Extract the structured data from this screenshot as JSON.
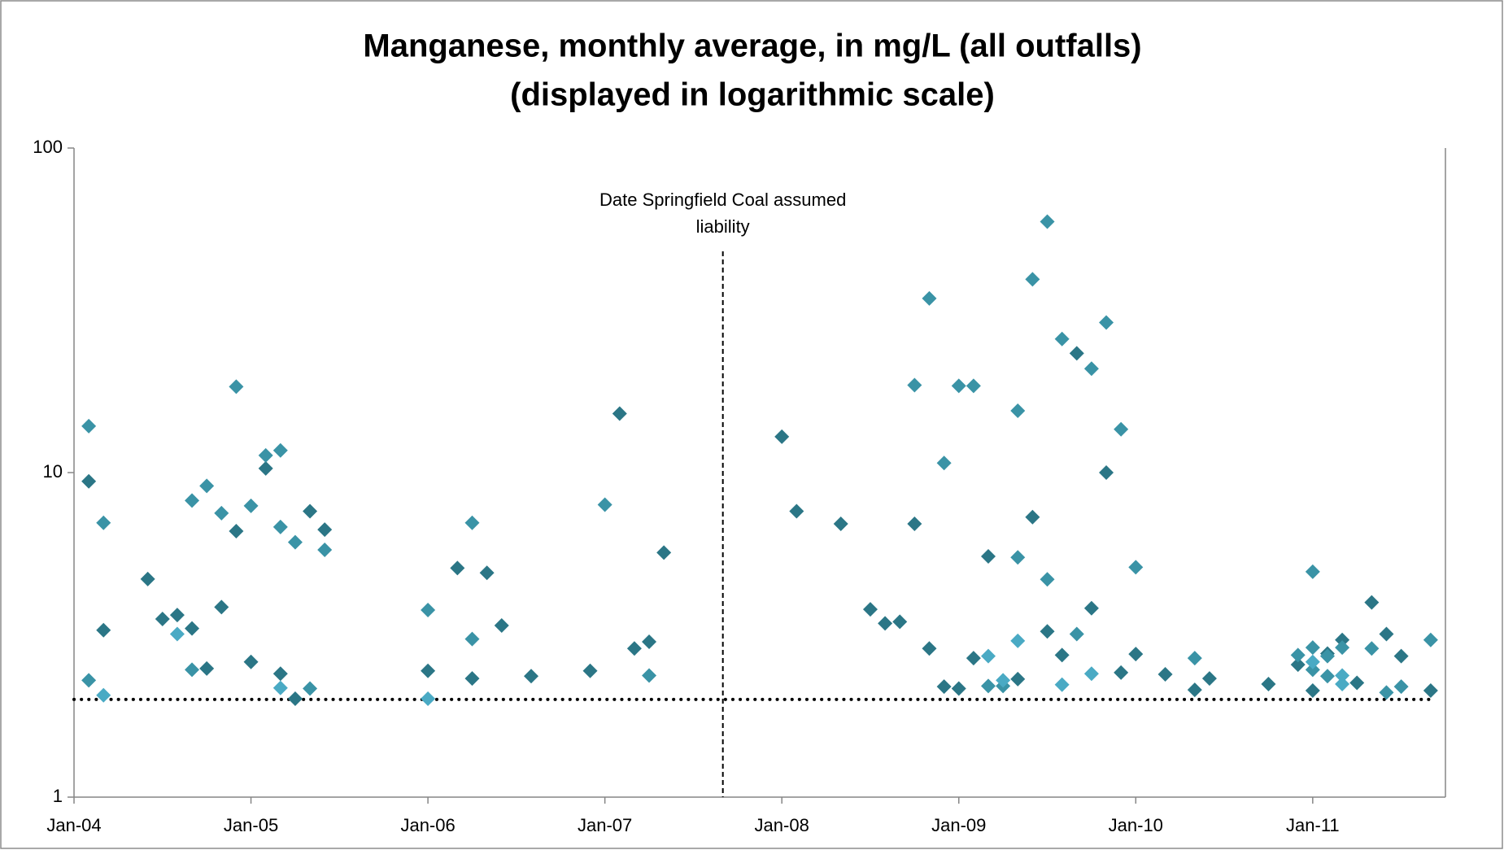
{
  "chart_data": {
    "type": "scatter",
    "title": "Manganese, monthly average, in mg/L (all outfalls)",
    "subtitle": "(displayed in logarithmic scale)",
    "log_y": true,
    "ylim": [
      1,
      100
    ],
    "yticks": [
      1,
      10,
      100
    ],
    "xlim": [
      "2004-01",
      "2011-10"
    ],
    "xticks": [
      {
        "value": "2004-01",
        "label": "Jan-04"
      },
      {
        "value": "2005-01",
        "label": "Jan-05"
      },
      {
        "value": "2006-01",
        "label": "Jan-06"
      },
      {
        "value": "2007-01",
        "label": "Jan-07"
      },
      {
        "value": "2008-01",
        "label": "Jan-08"
      },
      {
        "value": "2009-01",
        "label": "Jan-09"
      },
      {
        "value": "2010-01",
        "label": "Jan-10"
      },
      {
        "value": "2011-01",
        "label": "Jan-11"
      }
    ],
    "reference_line": 2,
    "annotation": {
      "text": [
        "Date Springfield Coal assumed",
        "liability"
      ],
      "x": "2007-09"
    },
    "series": [
      {
        "color": "#2b7686",
        "x": [
          "2004-02",
          "2004-03",
          "2004-06",
          "2004-07",
          "2004-08",
          "2004-09",
          "2004-10",
          "2004-11",
          "2004-12",
          "2005-01",
          "2005-02",
          "2005-03",
          "2005-04",
          "2005-05",
          "2005-06",
          "2006-01",
          "2006-03",
          "2006-04",
          "2006-05",
          "2006-06",
          "2006-08",
          "2006-12",
          "2007-02",
          "2007-03",
          "2007-04",
          "2007-05",
          "2008-01",
          "2008-02",
          "2008-05",
          "2008-07",
          "2008-08",
          "2008-09",
          "2008-10",
          "2008-11",
          "2008-12",
          "2009-01",
          "2009-02",
          "2009-03",
          "2009-05",
          "2009-06",
          "2009-07",
          "2009-08",
          "2009-09",
          "2009-10",
          "2009-11",
          "2009-12",
          "2010-01",
          "2010-03",
          "2010-05",
          "2010-06",
          "2010-10",
          "2010-12",
          "2011-01",
          "2011-02",
          "2011-03",
          "2011-04",
          "2011-05",
          "2011-06",
          "2011-07",
          "2011-09"
        ],
        "values": [
          9.4,
          3.27,
          4.7,
          3.54,
          3.64,
          3.31,
          2.49,
          3.85,
          6.6,
          2.61,
          10.3,
          2.4,
          2.01,
          7.6,
          6.67,
          2.45,
          5.08,
          2.32,
          4.91,
          3.38,
          2.36,
          2.45,
          15.2,
          2.87,
          3.01,
          5.67,
          12.9,
          7.6,
          6.95,
          3.79,
          3.43,
          3.47,
          6.95,
          2.87,
          2.19,
          2.16,
          2.68,
          5.52,
          2.31,
          7.29,
          3.24,
          2.74,
          23.3,
          3.82,
          10.0,
          2.42,
          2.76,
          2.39,
          2.14,
          2.32,
          2.23,
          2.56,
          2.13,
          2.77,
          3.05,
          2.25,
          3.98,
          3.18,
          2.72,
          2.13
        ]
      },
      {
        "color": "#3a93a6",
        "x": [
          "2004-02",
          "2004-02",
          "2004-03",
          "2004-09",
          "2004-09",
          "2004-10",
          "2004-11",
          "2004-12",
          "2005-01",
          "2005-02",
          "2005-03",
          "2005-03",
          "2005-04",
          "2005-05",
          "2005-06",
          "2006-01",
          "2006-04",
          "2006-04",
          "2007-01",
          "2007-04",
          "2008-10",
          "2008-11",
          "2008-12",
          "2009-01",
          "2009-02",
          "2009-03",
          "2009-04",
          "2009-05",
          "2009-05",
          "2009-06",
          "2009-07",
          "2009-07",
          "2009-08",
          "2009-09",
          "2009-10",
          "2009-11",
          "2009-12",
          "2010-01",
          "2010-05",
          "2010-12",
          "2011-01",
          "2011-01",
          "2011-01",
          "2011-02",
          "2011-02",
          "2011-03",
          "2011-05",
          "2011-06",
          "2011-07",
          "2011-09"
        ],
        "values": [
          13.9,
          2.29,
          7.0,
          8.2,
          2.47,
          9.1,
          7.5,
          18.4,
          7.9,
          11.3,
          11.7,
          6.8,
          6.1,
          2.16,
          5.78,
          3.77,
          7.0,
          3.07,
          7.96,
          2.37,
          18.6,
          34.4,
          10.7,
          18.5,
          18.5,
          2.2,
          2.2,
          15.5,
          5.48,
          39.4,
          59.3,
          4.69,
          25.8,
          3.18,
          20.9,
          29.0,
          13.6,
          5.11,
          2.68,
          2.74,
          4.95,
          2.89,
          2.47,
          2.72,
          2.36,
          2.89,
          2.87,
          2.1,
          2.19,
          3.05
        ]
      },
      {
        "color": "#4aaac4",
        "x": [
          "2004-03",
          "2004-08",
          "2005-03",
          "2006-01",
          "2009-03",
          "2009-04",
          "2009-05",
          "2009-08",
          "2009-10",
          "2011-01",
          "2011-03",
          "2011-03"
        ],
        "values": [
          2.06,
          3.18,
          2.17,
          2.01,
          2.72,
          2.29,
          3.03,
          2.22,
          2.4,
          2.61,
          2.37,
          2.23
        ]
      }
    ]
  }
}
